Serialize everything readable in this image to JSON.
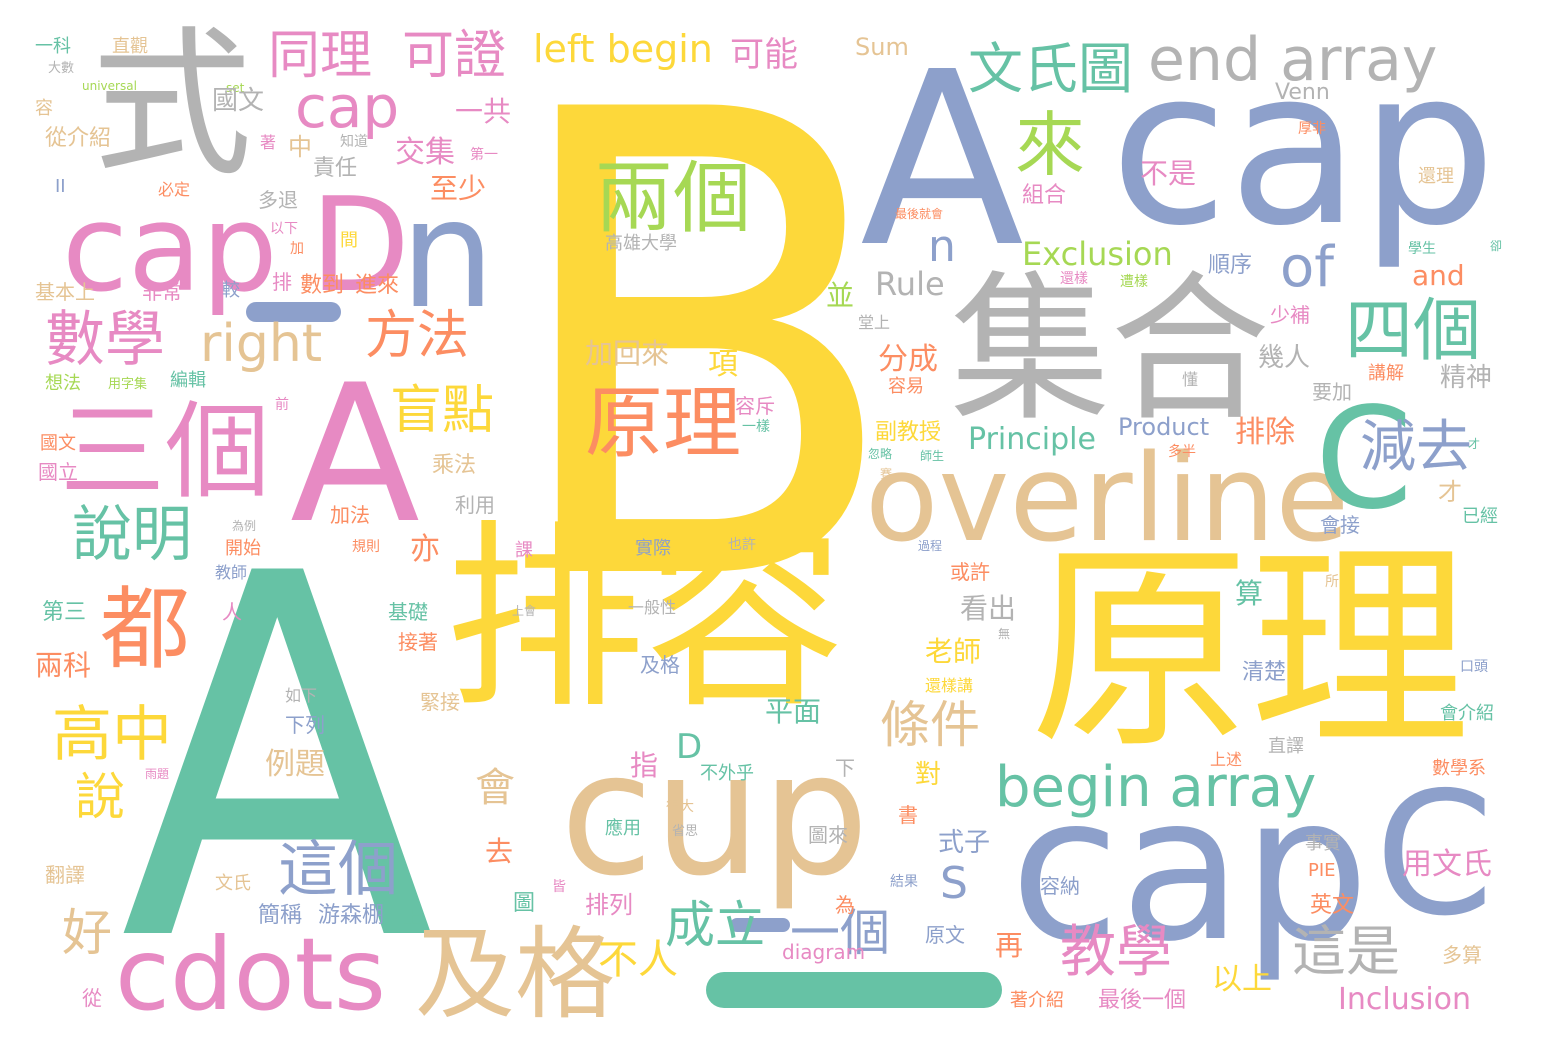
{
  "palette": {
    "yellow": "#fdd83a",
    "green": "#66c2a5",
    "blue": "#8da0cb",
    "grey": "#b3b3b3",
    "orange": "#fc8d62",
    "pink": "#e78ac3",
    "tan": "#e5c494",
    "lime": "#a6d854"
  },
  "words": [
    "B",
    "A",
    "A",
    "A",
    "cap",
    "cap",
    "排容",
    "原理",
    "集合",
    "式",
    "cap",
    "D",
    "n",
    "cup",
    "overline",
    "C",
    "C",
    "cdots",
    "及格",
    "三個",
    "都",
    "兩個",
    "原理",
    "來",
    "end array",
    "文氏圖",
    "數學",
    "說明",
    "高中",
    "cap",
    "同理",
    "可證",
    "四個",
    "減去",
    "begin array",
    "right",
    "盲點",
    "方法",
    "這個",
    "教學",
    "成立",
    "一個",
    "left begin",
    "可能",
    "這是",
    "of",
    "條件",
    "說",
    "好",
    "會",
    "不人",
    "n",
    "S",
    "D",
    "Exclusion",
    "Rule",
    "Principle",
    "Product",
    "Inclusion",
    "Sum",
    "Venn",
    "diagram",
    "and",
    "PIE",
    "universal",
    "set",
    "國文",
    "一共",
    "交集",
    "至少",
    "責任",
    "中",
    "不是",
    "組合",
    "多退",
    "高雄大學",
    "數到",
    "進來",
    "排",
    "基本上",
    "非常",
    "較",
    "順序",
    "並",
    "分成",
    "容易",
    "加回來",
    "項",
    "幾人",
    "精神",
    "要加",
    "排除",
    "副教授",
    "容斥",
    "一樣",
    "乘法",
    "加法",
    "規則",
    "開始",
    "教師",
    "亦",
    "利用",
    "國立",
    "兩科",
    "第三",
    "接著",
    "基礎",
    "例題",
    "下列",
    "如下",
    "緊接",
    "平面",
    "及格",
    "應用",
    "不外乎",
    "指",
    "對",
    "老師",
    "看出",
    "或許",
    "式子",
    "去",
    "圖",
    "排列",
    "為",
    "游森棚",
    "簡稱",
    "上",
    "原文",
    "再",
    "以上",
    "最後一個",
    "著介紹",
    "用文氏",
    "英文",
    "事實",
    "容納",
    "翻譯",
    "從",
    "文氏",
    "清楚",
    "直譯",
    "會介紹",
    "數學系",
    "口頭",
    "算",
    "已經",
    "才",
    "會接",
    "多算",
    "也許",
    "實際",
    "課",
    "一般性",
    "上會",
    "過程",
    "皆",
    "書",
    "圖來",
    "結果",
    "很大",
    "省思",
    "多半",
    "學生",
    "遭樣",
    "少補",
    "講解",
    "懂",
    "才",
    "卻",
    "還理",
    "厚非",
    "最後就會",
    "加",
    "以下",
    "間",
    "想法",
    "用字集",
    "編輯",
    "前",
    "國文",
    "直觀",
    "一科",
    "大數",
    "容",
    "從介紹",
    "著",
    "知道",
    "第一",
    "必定",
    "II",
    "還樣",
    "堂上",
    "忽略",
    "師生",
    "為例",
    "人",
    "下",
    "所",
    "無",
    "上述",
    "雨題",
    "賽",
    "還樣講"
  ]
}
